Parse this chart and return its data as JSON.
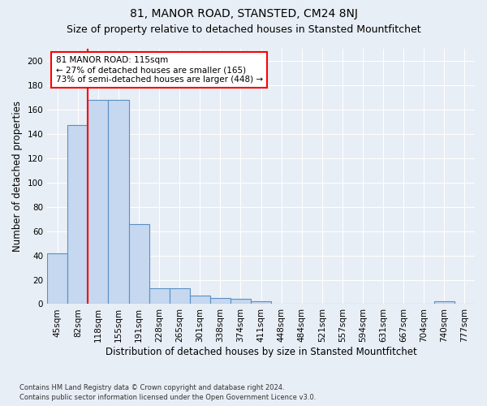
{
  "title": "81, MANOR ROAD, STANSTED, CM24 8NJ",
  "subtitle": "Size of property relative to detached houses in Stansted Mountfitchet",
  "xlabel": "Distribution of detached houses by size in Stansted Mountfitchet",
  "ylabel": "Number of detached properties",
  "footnote1": "Contains HM Land Registry data © Crown copyright and database right 2024.",
  "footnote2": "Contains public sector information licensed under the Open Government Licence v3.0.",
  "categories": [
    "45sqm",
    "82sqm",
    "118sqm",
    "155sqm",
    "191sqm",
    "228sqm",
    "265sqm",
    "301sqm",
    "338sqm",
    "374sqm",
    "411sqm",
    "448sqm",
    "484sqm",
    "521sqm",
    "557sqm",
    "594sqm",
    "631sqm",
    "667sqm",
    "704sqm",
    "740sqm",
    "777sqm"
  ],
  "values": [
    42,
    147,
    168,
    168,
    66,
    13,
    13,
    7,
    5,
    4,
    2,
    0,
    0,
    0,
    0,
    0,
    0,
    0,
    0,
    2,
    0
  ],
  "bar_color": "#c5d8f0",
  "bar_edge_color": "#5a8fc3",
  "annotation_text": "81 MANOR ROAD: 115sqm\n← 27% of detached houses are smaller (165)\n73% of semi-detached houses are larger (448) →",
  "annotation_box_color": "white",
  "annotation_box_edge_color": "red",
  "property_line_color": "red",
  "ylim": [
    0,
    210
  ],
  "yticks": [
    0,
    20,
    40,
    60,
    80,
    100,
    120,
    140,
    160,
    180,
    200
  ],
  "background_color": "#e8eef5",
  "plot_background_color": "#e8eef5",
  "grid_color": "white",
  "title_fontsize": 10,
  "subtitle_fontsize": 9,
  "xlabel_fontsize": 8.5,
  "ylabel_fontsize": 8.5,
  "tick_fontsize": 7.5,
  "annotation_fontsize": 7.5
}
